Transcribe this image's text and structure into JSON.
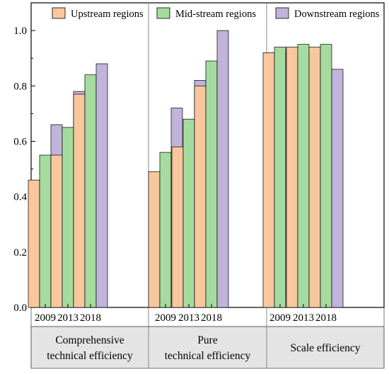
{
  "chart_data": {
    "type": "bar",
    "title": "",
    "xlabel": "",
    "ylabel": "",
    "ylim": [
      0,
      1.1
    ],
    "yticks": [
      "0.0",
      "0.2",
      "0.4",
      "0.6",
      "0.8",
      "1.0"
    ],
    "grid": false,
    "legend_position": "top",
    "groups": [
      {
        "label_lines": [
          "Comprehensive",
          "technical efficiency"
        ],
        "categories": [
          "2009",
          "2013",
          "2018"
        ],
        "series": [
          {
            "name": "Upstream regions",
            "values": [
              0.46,
              0.55,
              0.77
            ]
          },
          {
            "name": "Mid-stream regions",
            "values": [
              0.55,
              0.65,
              0.84
            ]
          },
          {
            "name": "Downstream regions",
            "values": [
              0.66,
              0.78,
              0.88
            ]
          }
        ]
      },
      {
        "label_lines": [
          "Pure",
          "technical efficiency"
        ],
        "categories": [
          "2009",
          "2013",
          "2018"
        ],
        "series": [
          {
            "name": "Upstream regions",
            "values": [
              0.49,
              0.58,
              0.8
            ]
          },
          {
            "name": "Mid-stream regions",
            "values": [
              0.56,
              0.68,
              0.89
            ]
          },
          {
            "name": "Downstream regions",
            "values": [
              0.72,
              0.82,
              1.0
            ]
          }
        ]
      },
      {
        "label_lines": [
          "Scale efficiency"
        ],
        "categories": [
          "2009",
          "2013",
          "2018"
        ],
        "series": [
          {
            "name": "Upstream regions",
            "values": [
              0.92,
              0.94,
              0.94
            ]
          },
          {
            "name": "Mid-stream regions",
            "values": [
              0.94,
              0.95,
              0.95
            ]
          },
          {
            "name": "Downstream regions",
            "values": [
              0.92,
              0.92,
              0.86
            ]
          }
        ]
      }
    ],
    "legend": [
      {
        "name": "Upstream regions",
        "color": "#f9c79d"
      },
      {
        "name": "Mid-stream regions",
        "color": "#a6dba0"
      },
      {
        "name": "Downstream regions",
        "color": "#c1b3d9"
      }
    ]
  }
}
